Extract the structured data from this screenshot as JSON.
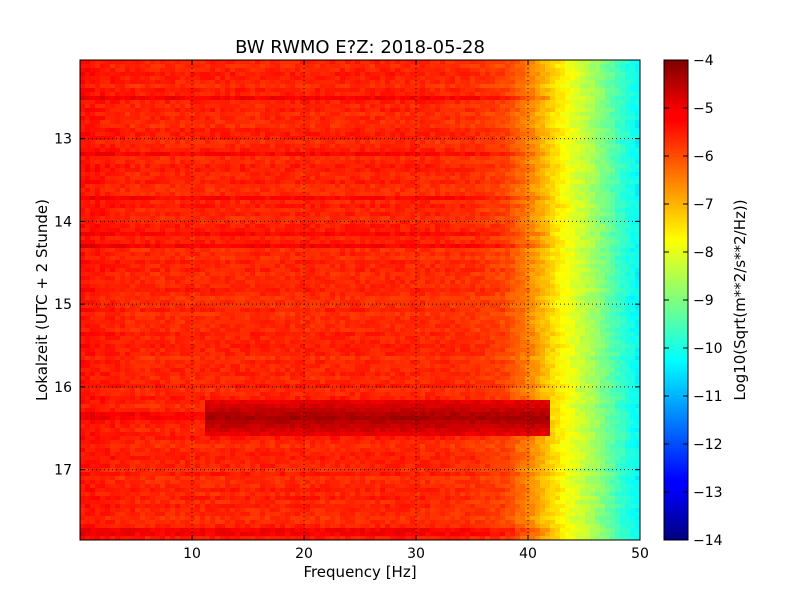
{
  "chart_data": {
    "type": "heatmap",
    "title": "BW RWMO E?Z: 2018-05-28",
    "xlabel": "Frequency [Hz]",
    "ylabel": "Lokalzeit (UTC + 2 Stunde)",
    "xlim": [
      0,
      50
    ],
    "ylim_inverted": [
      12.05,
      17.85
    ],
    "x_ticks": [
      10,
      20,
      30,
      40,
      50
    ],
    "x_tick_labels": [
      "10",
      "20",
      "30",
      "40",
      "50"
    ],
    "y_ticks": [
      13,
      14,
      15,
      16,
      17
    ],
    "y_tick_labels": [
      "13",
      "14",
      "15",
      "16",
      "17"
    ],
    "grid": true,
    "colormap": "jet",
    "colorbar": {
      "label": "Log10(Sqrt(m**2/s**2/Hz))",
      "range": [
        -14,
        -4
      ],
      "ticks": [
        -4,
        -5,
        -6,
        -7,
        -8,
        -9,
        -10,
        -11,
        -12,
        -13,
        -14
      ],
      "tick_labels": [
        "−4",
        "−5",
        "−6",
        "−7",
        "−8",
        "−9",
        "−10",
        "−11",
        "−12",
        "−13",
        "−14"
      ]
    },
    "spectral_profile": {
      "frequency_hz": [
        0,
        5,
        10,
        15,
        20,
        25,
        30,
        35,
        38,
        40,
        42,
        44,
        46,
        48,
        50
      ],
      "log10_amplitude": [
        -5.4,
        -5.6,
        -5.6,
        -5.6,
        -5.6,
        -5.6,
        -5.6,
        -5.7,
        -5.9,
        -6.5,
        -7.3,
        -8.0,
        -8.7,
        -9.6,
        -10.3
      ]
    },
    "high_energy_time_band": {
      "time_range": [
        16.15,
        16.6
      ],
      "frequency_range": [
        11,
        42
      ],
      "log10_amplitude": -4.4
    },
    "strong_lines_time": [
      12.5,
      13.2,
      13.7,
      14.15,
      14.3,
      16.35,
      17.75
    ]
  }
}
